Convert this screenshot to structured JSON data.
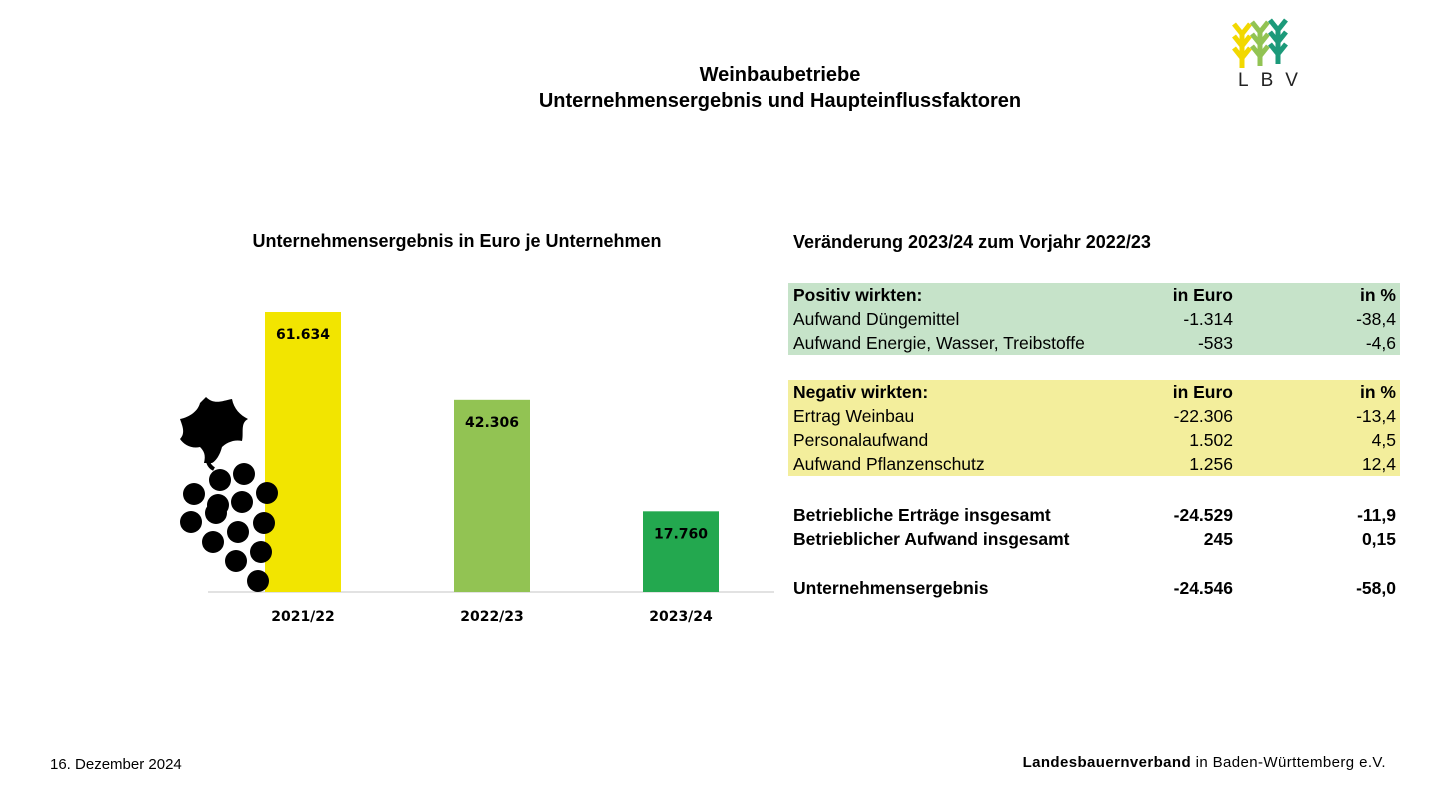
{
  "header": {
    "title_line1": "Weinbaubetriebe",
    "title_line2": "Unternehmensergebnis und Haupteinflussfaktoren",
    "logo_text": "LBV"
  },
  "colors": {
    "bar_2021": "#f2e500",
    "bar_2022": "#92c353",
    "bar_2023": "#23a84f",
    "positive_bg": "#c6e3c9",
    "negative_bg": "#f3ee9c"
  },
  "chart_data": {
    "type": "bar",
    "title": "Unternehmensergebnis in Euro je Unternehmen",
    "categories": [
      "2021/22",
      "2022/23",
      "2023/24"
    ],
    "values": [
      61634,
      42306,
      17760
    ],
    "value_labels": [
      "61.634",
      "42.306",
      "17.760"
    ],
    "xlabel": "",
    "ylabel": "",
    "ylim": [
      0,
      61634
    ],
    "grid": false,
    "legend": "none"
  },
  "table": {
    "title": "Veränderung 2023/24 zum Vorjahr 2022/23",
    "positive": {
      "header": {
        "label": "Positiv wirkten:",
        "euro": "in Euro",
        "pct": "in %"
      },
      "rows": [
        {
          "label": "Aufwand Düngemittel",
          "euro": "-1.314",
          "pct": "-38,4"
        },
        {
          "label": "Aufwand Energie, Wasser, Treibstoffe",
          "euro": "-583",
          "pct": "-4,6"
        }
      ]
    },
    "negative": {
      "header": {
        "label": "Negativ wirkten:",
        "euro": "in Euro",
        "pct": "in %"
      },
      "rows": [
        {
          "label": "Ertrag Weinbau",
          "euro": "-22.306",
          "pct": "-13,4"
        },
        {
          "label": "Personalaufwand",
          "euro": "1.502",
          "pct": "4,5"
        },
        {
          "label": "Aufwand Pflanzenschutz",
          "euro": "1.256",
          "pct": "12,4"
        }
      ]
    },
    "totals": [
      {
        "label": "Betriebliche Erträge insgesamt",
        "euro": "-24.529",
        "pct": "-11,9"
      },
      {
        "label": "Betrieblicher Aufwand insgesamt",
        "euro": "245",
        "pct": "0,15"
      }
    ],
    "result": {
      "label": "Unternehmensergebnis",
      "euro": "-24.546",
      "pct": "-58,0"
    }
  },
  "footer": {
    "date": "16. Dezember 2024",
    "org_bold": "Landesbauernverband",
    "org_rest": " in Baden-Württemberg e.V."
  },
  "icons": {
    "grapes": "grapes-icon",
    "logo": "wheat-logo-icon"
  }
}
